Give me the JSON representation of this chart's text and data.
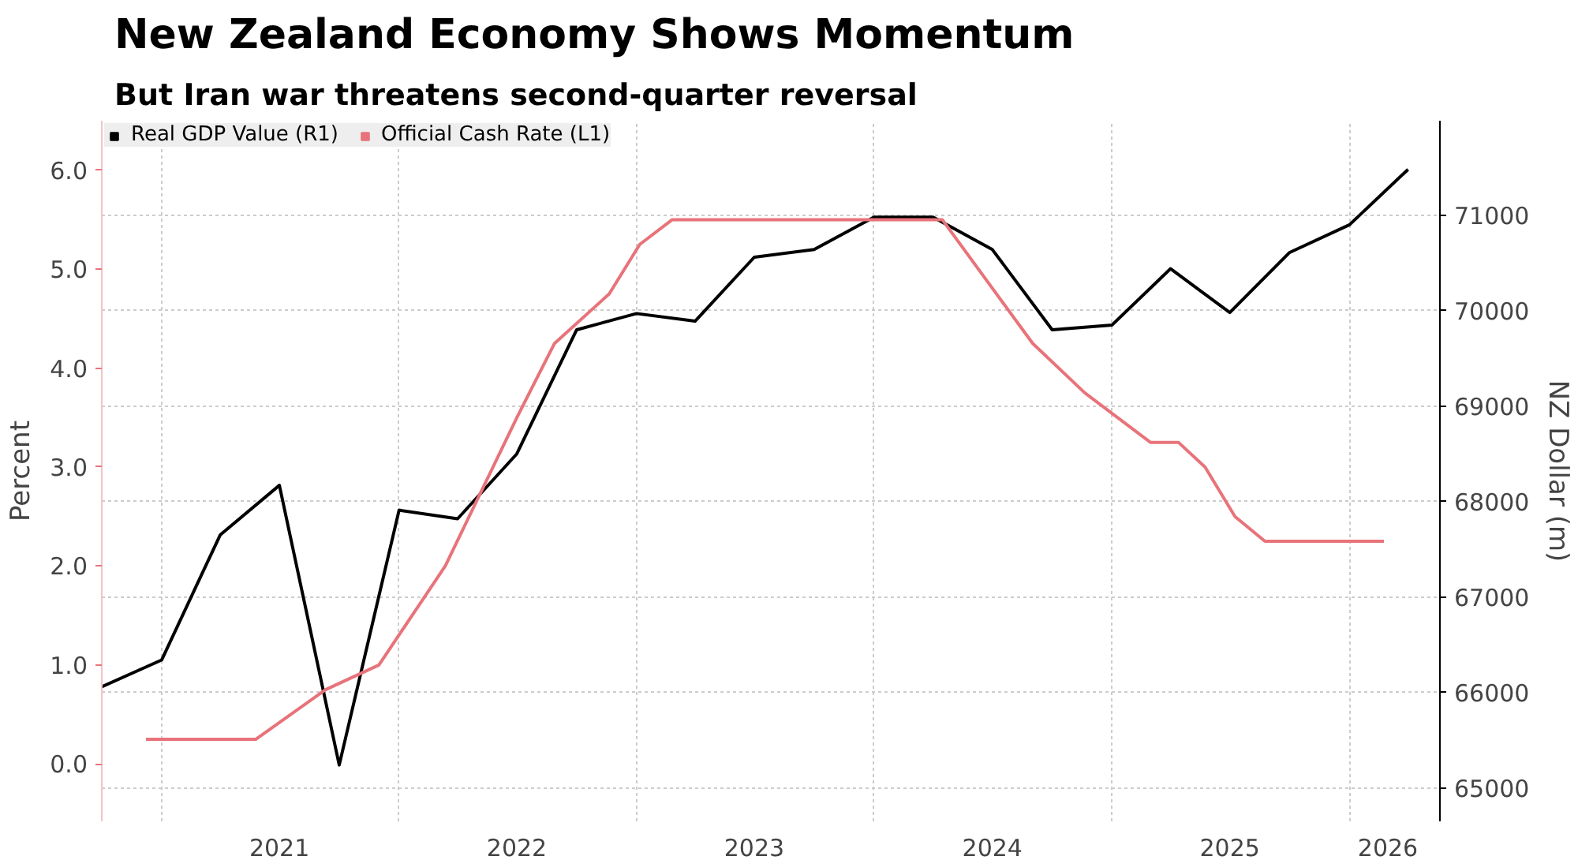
{
  "chart_data": {
    "type": "line",
    "title": "New Zealand Economy Shows Momentum",
    "subtitle": "But Iran war threatens second-quarter reversal",
    "ylabel": "Percent",
    "y2label": "NZ Dollar (m)",
    "series": [
      {
        "name": "Real GDP Value (R1)",
        "color": "#000000",
        "axis": "y2",
        "x": [
          "2020-10",
          "2021-01",
          "2021-04",
          "2021-07",
          "2021-10",
          "2022-01",
          "2022-04",
          "2022-07",
          "2022-10",
          "2023-01",
          "2023-04",
          "2023-07",
          "2023-10",
          "2024-01",
          "2024-04",
          "2024-07",
          "2024-10",
          "2025-01",
          "2025-04",
          "2025-07",
          "2025-10",
          "2026-01",
          "2026-04"
        ],
        "values": [
          66060,
          66340,
          67650,
          68170,
          65240,
          67910,
          67820,
          68500,
          69800,
          69970,
          69890,
          70560,
          70640,
          70980,
          70980,
          70640,
          69800,
          69850,
          70440,
          69980,
          70610,
          70900,
          71480
        ]
      },
      {
        "name": "Official Cash Rate (L1)",
        "color": "#e8737a",
        "x": [
          "2020-12-08",
          "2021-05-26",
          "2021-09-10",
          "2021-12-01",
          "2022-03-13",
          "2022-07-01",
          "2022-08-28",
          "2022-11-20",
          "2023-01-06",
          "2023-02-25",
          "2024-04-15",
          "2024-09-01",
          "2024-11-20",
          "2025-03-01",
          "2025-04-13",
          "2025-05-24",
          "2025-07-09",
          "2025-08-24",
          "2026-02-23"
        ],
        "values": [
          0.25,
          0.25,
          0.75,
          1.0,
          2.0,
          3.5,
          4.25,
          4.75,
          5.25,
          5.5,
          5.5,
          4.25,
          3.75,
          3.25,
          3.25,
          3.0,
          2.5,
          2.25,
          2.25
        ]
      }
    ],
    "xlim": [
      "2020-10-01",
      "2026-05-20"
    ],
    "xticks": [
      {
        "value": "2021-01-01",
        "label": null
      },
      {
        "value": "2022-01-01",
        "label": null
      },
      {
        "value": "2023-01-01",
        "label": null
      },
      {
        "value": "2024-01-01",
        "label": null
      },
      {
        "value": "2025-01-01",
        "label": null
      },
      {
        "value": "2026-01-01",
        "label": null
      },
      {
        "value": "2021-07-01",
        "label": "2021"
      },
      {
        "value": "2022-07-01",
        "label": "2022"
      },
      {
        "value": "2023-07-01",
        "label": "2023"
      },
      {
        "value": "2024-07-01",
        "label": "2024"
      },
      {
        "value": "2025-07-01",
        "label": "2025"
      },
      {
        "value": "2026-03-01",
        "label": "2026"
      }
    ],
    "ylim": [
      -0.58,
      6.5
    ],
    "yticks": [
      {
        "value": 0,
        "label": "0.0"
      },
      {
        "value": 1,
        "label": "1.0"
      },
      {
        "value": 2,
        "label": "2.0"
      },
      {
        "value": 3,
        "label": "3.0"
      },
      {
        "value": 4,
        "label": "4.0"
      },
      {
        "value": 5,
        "label": "5.0"
      },
      {
        "value": 6,
        "label": "6.0"
      }
    ],
    "y2lim": [
      64650,
      71990
    ],
    "y2ticks": [
      65000,
      66000,
      67000,
      68000,
      69000,
      70000,
      71000
    ],
    "grid": true,
    "legend": "top left",
    "line_style": "solid",
    "marker": "none"
  }
}
